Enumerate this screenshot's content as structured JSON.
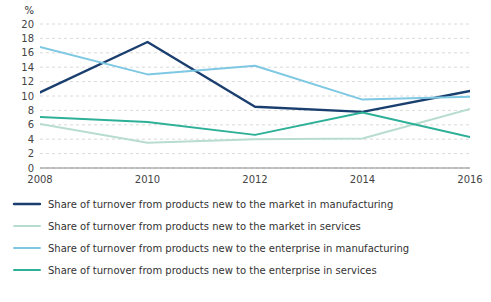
{
  "chart_data": {
    "type": "line",
    "x": [
      2008,
      2010,
      2012,
      2014,
      2016
    ],
    "series": [
      {
        "name": "Share of turnover from products new to the market in manufacturing",
        "color": "#1a3f6f",
        "values": [
          10.5,
          17.5,
          8.5,
          7.8,
          10.7
        ]
      },
      {
        "name": "Share of turnover from products new to the market in services",
        "color": "#b8ddd0",
        "values": [
          6.1,
          3.5,
          4.0,
          4.1,
          8.2
        ]
      },
      {
        "name": "Share of turnover from products new to the enterprise in manufacturing",
        "color": "#7ec8e3",
        "values": [
          16.8,
          13.0,
          14.2,
          9.5,
          9.9
        ]
      },
      {
        "name": "Share of turnover from products new to the enterprise in services",
        "color": "#2db097",
        "values": [
          7.1,
          6.4,
          4.6,
          7.7,
          4.3
        ]
      }
    ],
    "y_label": "%",
    "xlim": [
      2008,
      2016
    ],
    "xticks": [
      2008,
      2010,
      2012,
      2014,
      2016
    ],
    "ylim": [
      0,
      20
    ],
    "yticks": [
      0,
      2,
      4,
      6,
      8,
      10,
      12,
      14,
      16,
      18,
      20
    ],
    "grid": true,
    "legend": "bottom"
  }
}
